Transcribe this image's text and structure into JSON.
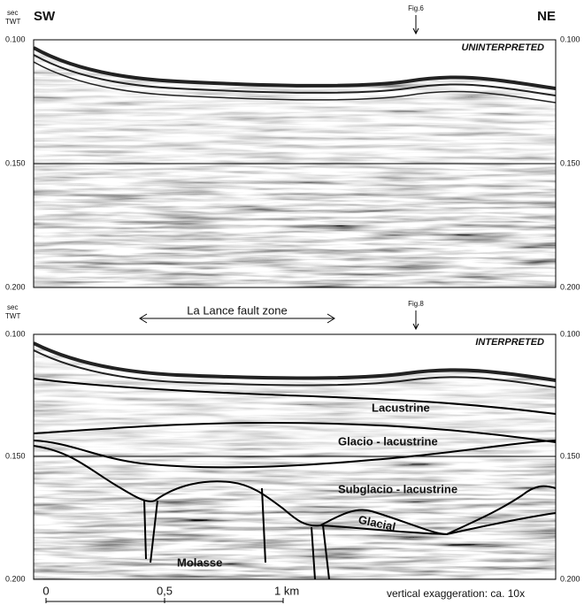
{
  "top_panel": {
    "axis_unit": "sec",
    "axis_label": "TWT",
    "left_label": "SW",
    "right_label": "NE",
    "figure_ref": "Fig.6",
    "title": "UNINTERPRETED",
    "left_ticks": [
      "0.100",
      "0.150",
      "0.200"
    ],
    "right_ticks": [
      "0.100",
      "0.150",
      "0.200"
    ]
  },
  "bottom_panel": {
    "axis_unit": "sec",
    "axis_label": "TWT",
    "figure_ref": "Fig.8",
    "title": "INTERPRETED",
    "annotation": "La Lance fault zone",
    "left_ticks": [
      "0.100",
      "0.150",
      "0.200"
    ],
    "right_ticks": [
      "0.100",
      "0.150",
      "0.200"
    ],
    "units": [
      "Lacustrine",
      "Glacio - lacustrine",
      "Subglacio - lacustrine",
      "Glacial",
      "Molasse"
    ]
  },
  "scale_bar": {
    "ticks": [
      "0",
      "0,5",
      "1 km"
    ],
    "note": "vertical exaggeration: ca. 10x"
  }
}
